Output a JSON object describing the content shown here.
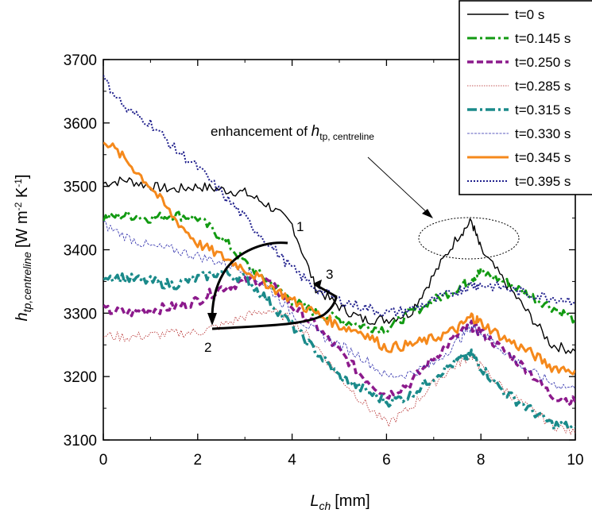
{
  "chart_data": {
    "type": "line",
    "xlabel": {
      "main": "L",
      "sub": "ch",
      "unit": "[mm]"
    },
    "ylabel": {
      "main": "h",
      "sub": "tp,centreline",
      "unit_a": "[W m",
      "sup_a": "-2",
      "unit_b": " K",
      "sup_b": "-1",
      "unit_c": "]"
    },
    "xlim": [
      0,
      10
    ],
    "ylim": [
      3100,
      3700
    ],
    "x_ticks": [
      0,
      2,
      4,
      6,
      8,
      10
    ],
    "x_tick_labels": [
      "0",
      "2",
      "4",
      "6",
      "8",
      "10"
    ],
    "y_ticks": [
      3100,
      3200,
      3300,
      3400,
      3500,
      3600,
      3700
    ],
    "y_tick_labels": [
      "3100",
      "3200",
      "3300",
      "3400",
      "3500",
      "3600",
      "3700"
    ],
    "grid": false,
    "legend_position": "top-right",
    "annotations": {
      "enhancement_main": "enhancement of ",
      "enhancement_h": "h",
      "enhancement_sub": "tp, centreline",
      "label_1": "1",
      "label_2": "2",
      "label_3": "3"
    },
    "x": [
      0,
      0.5,
      1,
      1.5,
      2,
      2.5,
      3,
      3.5,
      4,
      4.5,
      5,
      5.5,
      6,
      6.5,
      7,
      7.5,
      7.8,
      8,
      8.5,
      9,
      9.5,
      10
    ],
    "series": [
      {
        "name": "t=0 s",
        "color": "#000000",
        "width": 1.4,
        "dash": "",
        "values": [
          3505,
          3510,
          3500,
          3495,
          3500,
          3495,
          3490,
          3470,
          3440,
          3340,
          3310,
          3290,
          3290,
          3300,
          3360,
          3420,
          3445,
          3400,
          3350,
          3300,
          3250,
          3240
        ]
      },
      {
        "name": "t=0.145 s",
        "color": "#129a12",
        "width": 3,
        "dash": "12 4 3 4",
        "values": [
          3450,
          3455,
          3450,
          3455,
          3450,
          3420,
          3380,
          3350,
          3320,
          3300,
          3290,
          3280,
          3275,
          3300,
          3320,
          3340,
          3355,
          3365,
          3350,
          3330,
          3310,
          3290
        ]
      },
      {
        "name": "t=0.250 s",
        "color": "#8c1a8c",
        "width": 3.5,
        "dash": "8 4",
        "values": [
          3305,
          3300,
          3305,
          3310,
          3320,
          3340,
          3350,
          3350,
          3310,
          3280,
          3240,
          3200,
          3170,
          3190,
          3230,
          3265,
          3280,
          3270,
          3240,
          3210,
          3170,
          3160
        ]
      },
      {
        "name": "t=0.285 s",
        "color": "#b22222",
        "width": 0.8,
        "dash": "1.5 1.5",
        "values": [
          3265,
          3262,
          3265,
          3268,
          3270,
          3280,
          3295,
          3305,
          3290,
          3250,
          3200,
          3160,
          3125,
          3150,
          3190,
          3220,
          3235,
          3215,
          3180,
          3150,
          3125,
          3110
        ]
      },
      {
        "name": "t=0.315 s",
        "color": "#1a8a8a",
        "width": 3.5,
        "dash": "12 4 3 4",
        "values": [
          3360,
          3355,
          3350,
          3345,
          3355,
          3365,
          3355,
          3320,
          3280,
          3240,
          3200,
          3180,
          3160,
          3170,
          3200,
          3225,
          3235,
          3215,
          3175,
          3150,
          3125,
          3120
        ]
      },
      {
        "name": "t=0.330 s",
        "color": "#2a2aaa",
        "width": 0.8,
        "dash": "3 1.5",
        "values": [
          3440,
          3420,
          3405,
          3400,
          3390,
          3380,
          3370,
          3340,
          3300,
          3270,
          3250,
          3230,
          3200,
          3205,
          3220,
          3255,
          3280,
          3270,
          3240,
          3210,
          3190,
          3180
        ]
      },
      {
        "name": "t=0.345 s",
        "color": "#f5891c",
        "width": 3,
        "dash": "",
        "values": [
          3575,
          3540,
          3500,
          3450,
          3410,
          3390,
          3370,
          3345,
          3320,
          3300,
          3280,
          3270,
          3245,
          3250,
          3260,
          3275,
          3295,
          3285,
          3260,
          3240,
          3215,
          3210
        ]
      },
      {
        "name": "t=0.395 s",
        "color": "#1f1f8c",
        "width": 2,
        "dash": "2 2",
        "values": [
          3670,
          3620,
          3600,
          3560,
          3530,
          3490,
          3450,
          3410,
          3370,
          3340,
          3320,
          3310,
          3300,
          3305,
          3320,
          3335,
          3345,
          3345,
          3340,
          3330,
          3325,
          3320
        ]
      }
    ]
  }
}
